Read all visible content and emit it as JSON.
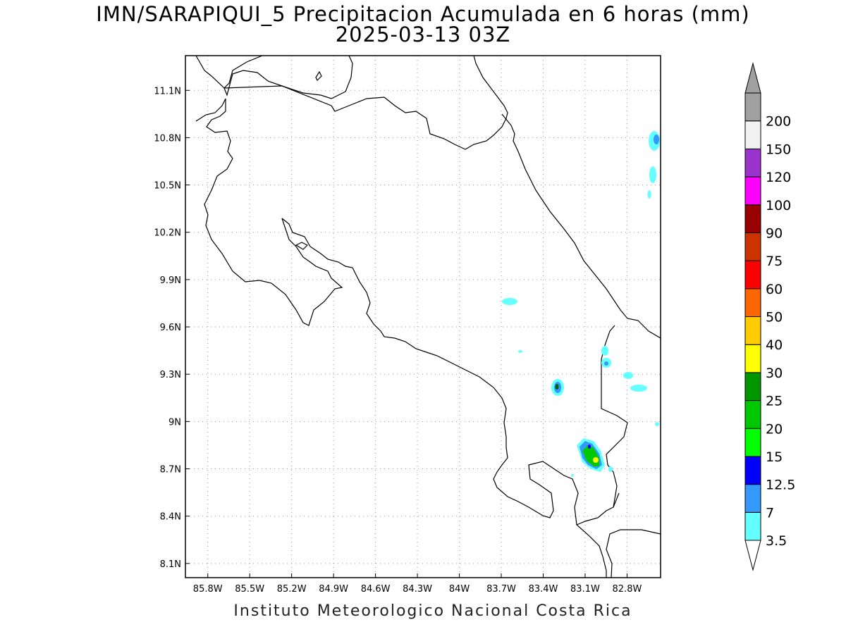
{
  "map": {
    "title": "IMN/SARAPIQUI_5 Precipitacion Acumulada en 6 horas (mm)",
    "subtitle": "2025-03-13 03Z",
    "credit": "Instituto Meteorologico Nacional Costa Rica",
    "lon_ticks": [
      "85.8W",
      "85.5W",
      "85.2W",
      "84.9W",
      "84.6W",
      "84.3W",
      "84W",
      "83.7W",
      "83.4W",
      "83.1W",
      "82.8W"
    ],
    "lat_ticks": [
      "11.1N",
      "10.8N",
      "10.5N",
      "10.2N",
      "9.9N",
      "9.6N",
      "9.3N",
      "9N",
      "8.7N",
      "8.4N",
      "8.1N"
    ],
    "extent": {
      "lon_min": -85.96,
      "lon_max": -82.56,
      "lat_min": 8.01,
      "lat_max": 11.32
    },
    "grid": true,
    "coastline_color": "#000000"
  },
  "colorbar": {
    "labels": [
      "3.5",
      "7",
      "12.5",
      "15",
      "20",
      "25",
      "30",
      "40",
      "50",
      "60",
      "75",
      "90",
      "100",
      "120",
      "150",
      "200"
    ],
    "colors": [
      "#64ffff",
      "#3399ff",
      "#0000ff",
      "#00ff00",
      "#00c800",
      "#009600",
      "#ffff00",
      "#ffcc00",
      "#ff6600",
      "#ff0000",
      "#cc3300",
      "#990000",
      "#ff00ff",
      "#9933cc",
      "#f2f2f2",
      "#a0a0a0"
    ],
    "under_color": "#ffffff",
    "over_color": "#a0a0a0"
  }
}
